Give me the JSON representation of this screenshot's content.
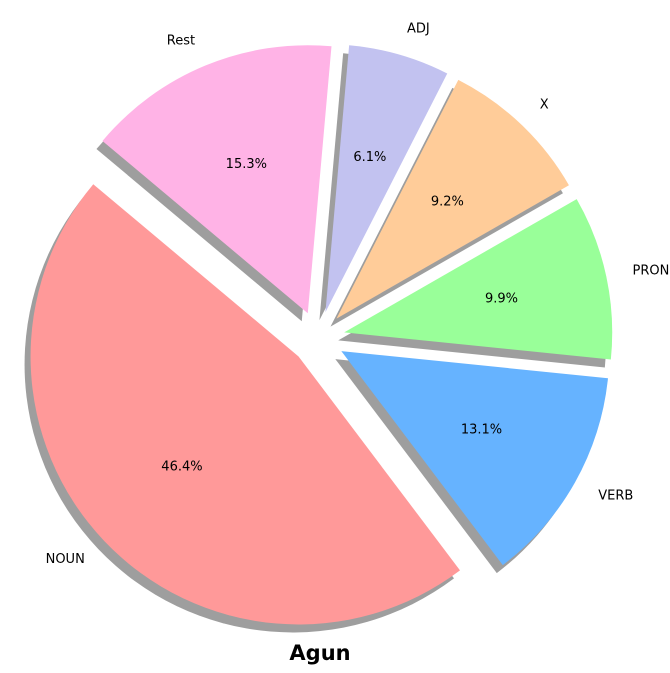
{
  "chart_data": {
    "type": "pie",
    "title": "Agun",
    "slices": [
      {
        "label": "NOUN",
        "value": 46.4,
        "pct_label": "46.4%",
        "color": "#ff9999"
      },
      {
        "label": "VERB",
        "value": 13.1,
        "pct_label": "13.1%",
        "color": "#66b3ff"
      },
      {
        "label": "PRON",
        "value": 9.9,
        "pct_label": "9.9%",
        "color": "#99ff99"
      },
      {
        "label": "X",
        "value": 9.2,
        "pct_label": "9.2%",
        "color": "#ffcc99"
      },
      {
        "label": "ADJ",
        "value": 6.1,
        "pct_label": "6.1%",
        "color": "#c2c2f0"
      },
      {
        "label": "Rest",
        "value": 15.3,
        "pct_label": "15.3%",
        "color": "#ffb3e6"
      }
    ],
    "exploded": true,
    "shadow": true,
    "legend": "none"
  }
}
